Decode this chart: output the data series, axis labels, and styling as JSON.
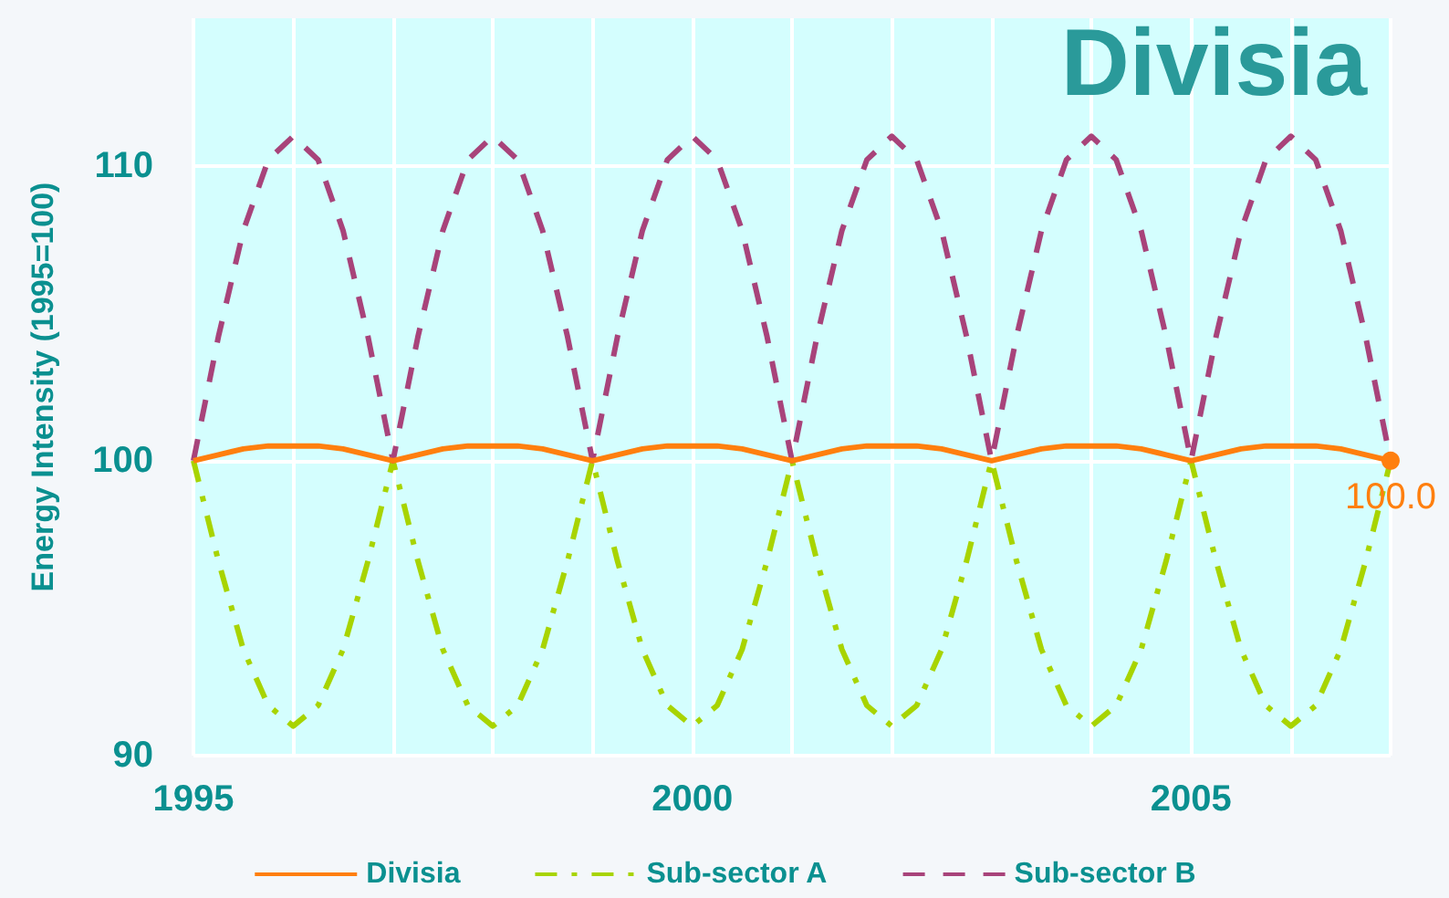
{
  "chart_data": {
    "type": "line",
    "title": "Divisia",
    "ylabel": "Energy Intensity (1995=100)",
    "x": [
      1995,
      1995.25,
      1995.5,
      1995.75,
      1996,
      1996.25,
      1996.5,
      1996.75,
      1997,
      1997.25,
      1997.5,
      1997.75,
      1998,
      1998.25,
      1998.5,
      1998.75,
      1999,
      1999.25,
      1999.5,
      1999.75,
      2000,
      2000.25,
      2000.5,
      2000.75,
      2001,
      2001.25,
      2001.5,
      2001.75,
      2002,
      2002.25,
      2002.5,
      2002.75,
      2003,
      2003.25,
      2003.5,
      2003.75,
      2004,
      2004.25,
      2004.5,
      2004.75,
      2005,
      2005.25,
      2005.5,
      2005.75,
      2006,
      2006.25,
      2006.5,
      2006.75,
      2007
    ],
    "series": [
      {
        "name": "Divisia",
        "color": "#ff7f0e",
        "line_style": "solid",
        "values": [
          100,
          100.2,
          100.4,
          100.5,
          100.5,
          100.5,
          100.4,
          100.2,
          100,
          100.2,
          100.4,
          100.5,
          100.5,
          100.5,
          100.4,
          100.2,
          100,
          100.2,
          100.4,
          100.5,
          100.5,
          100.5,
          100.4,
          100.2,
          100,
          100.2,
          100.4,
          100.5,
          100.5,
          100.5,
          100.4,
          100.2,
          100,
          100.2,
          100.4,
          100.5,
          100.5,
          100.5,
          100.4,
          100.2,
          100,
          100.2,
          100.4,
          100.5,
          100.5,
          100.5,
          100.4,
          100.2,
          100
        ],
        "value_labels": [
          null,
          null,
          null,
          null,
          null,
          null,
          null,
          null,
          null,
          null,
          null,
          null,
          null,
          null,
          null,
          null,
          null,
          null,
          null,
          null,
          null,
          null,
          null,
          null,
          null,
          null,
          null,
          null,
          null,
          null,
          null,
          null,
          null,
          null,
          null,
          null,
          null,
          null,
          null,
          null,
          null,
          null,
          null,
          null,
          null,
          null,
          null,
          null,
          "100.0"
        ]
      },
      {
        "name": "Sub-sector A",
        "color": "#a8d400",
        "line_style": "dashdot",
        "values": [
          100,
          96.6,
          93.6,
          91.7,
          91,
          91.7,
          93.6,
          96.6,
          100,
          96.6,
          93.6,
          91.7,
          91,
          91.7,
          93.6,
          96.6,
          100,
          96.6,
          93.6,
          91.7,
          91,
          91.7,
          93.6,
          96.6,
          100,
          96.6,
          93.6,
          91.7,
          91,
          91.7,
          93.6,
          96.6,
          100,
          96.6,
          93.6,
          91.7,
          91,
          91.7,
          93.6,
          96.6,
          100,
          96.6,
          93.6,
          91.7,
          91,
          91.7,
          93.6,
          96.6,
          100
        ]
      },
      {
        "name": "Sub-sector B",
        "color": "#a8437a",
        "line_style": "dashed",
        "values": [
          100,
          104.2,
          107.8,
          110.2,
          111,
          110.2,
          107.8,
          104.2,
          100,
          104.2,
          107.8,
          110.2,
          111,
          110.2,
          107.8,
          104.2,
          100,
          104.2,
          107.8,
          110.2,
          111,
          110.2,
          107.8,
          104.2,
          100,
          104.2,
          107.8,
          110.2,
          111,
          110.2,
          107.8,
          104.2,
          100,
          104.2,
          107.8,
          110.2,
          111,
          110.2,
          107.8,
          104.2,
          100,
          104.2,
          107.8,
          110.2,
          111,
          110.2,
          107.8,
          104.2,
          100
        ]
      }
    ],
    "xlim": [
      1995,
      2007
    ],
    "xticks": [
      1995,
      {
        "value": 1996,
        "label": null
      },
      {
        "value": 1997,
        "label": null
      },
      {
        "value": 1998,
        "label": null
      },
      {
        "value": 1999,
        "label": null
      },
      2000,
      {
        "value": 2001,
        "label": null
      },
      {
        "value": 2002,
        "label": null
      },
      {
        "value": 2003,
        "label": null
      },
      {
        "value": 2004,
        "label": null
      },
      2005,
      {
        "value": 2006,
        "label": null
      },
      {
        "value": 2007,
        "label": null
      }
    ],
    "ylim": [
      90,
      115
    ],
    "yticks": [
      90,
      100,
      110
    ],
    "grid": true,
    "legend": "bottom",
    "marker": "none"
  }
}
